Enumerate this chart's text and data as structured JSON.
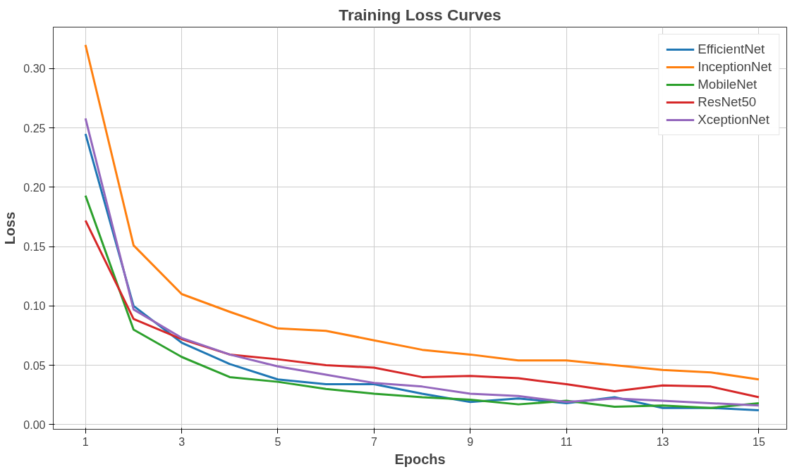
{
  "chart_data": {
    "type": "line",
    "title": "Training Loss Curves",
    "xlabel": "Epochs",
    "ylabel": "Loss",
    "x": [
      1,
      2,
      3,
      4,
      5,
      6,
      7,
      8,
      9,
      10,
      11,
      12,
      13,
      14,
      15
    ],
    "series": [
      {
        "name": "EfficientNet",
        "color": "#1f77b4",
        "values": [
          0.245,
          0.1,
          0.069,
          0.051,
          0.038,
          0.034,
          0.034,
          0.026,
          0.019,
          0.022,
          0.018,
          0.023,
          0.014,
          0.014,
          0.012
        ]
      },
      {
        "name": "InceptionNet",
        "color": "#ff7f0e",
        "values": [
          0.32,
          0.151,
          0.11,
          0.095,
          0.081,
          0.079,
          0.071,
          0.063,
          0.059,
          0.054,
          0.054,
          0.05,
          0.046,
          0.044,
          0.038
        ]
      },
      {
        "name": "MobileNet",
        "color": "#2ca02c",
        "values": [
          0.193,
          0.08,
          0.057,
          0.04,
          0.036,
          0.03,
          0.026,
          0.023,
          0.021,
          0.017,
          0.02,
          0.015,
          0.016,
          0.014,
          0.018
        ]
      },
      {
        "name": "ResNet50",
        "color": "#d62728",
        "values": [
          0.172,
          0.089,
          0.072,
          0.059,
          0.055,
          0.05,
          0.048,
          0.04,
          0.041,
          0.039,
          0.034,
          0.028,
          0.033,
          0.032,
          0.023
        ]
      },
      {
        "name": "XceptionNet",
        "color": "#9467bd",
        "values": [
          0.258,
          0.097,
          0.073,
          0.059,
          0.049,
          0.042,
          0.035,
          0.032,
          0.026,
          0.024,
          0.019,
          0.022,
          0.02,
          0.018,
          0.016
        ]
      }
    ],
    "xlim": [
      0.33,
      15.58
    ],
    "ylim": [
      -0.004,
      0.335
    ],
    "xticks": [
      1,
      3,
      5,
      7,
      9,
      11,
      13,
      15
    ],
    "yticks": [
      {
        "value": 0,
        "label": "0.00"
      },
      {
        "value": 0.05,
        "label": "0.05"
      },
      {
        "value": 0.1,
        "label": "0.10"
      },
      {
        "value": 0.15,
        "label": "0.15"
      },
      {
        "value": 0.2,
        "label": "0.20"
      },
      {
        "value": 0.25,
        "label": "0.25"
      },
      {
        "value": 0.3,
        "label": "0.30"
      }
    ],
    "grid": true,
    "legend": "top right",
    "line_style": "solid",
    "marker": "none"
  }
}
